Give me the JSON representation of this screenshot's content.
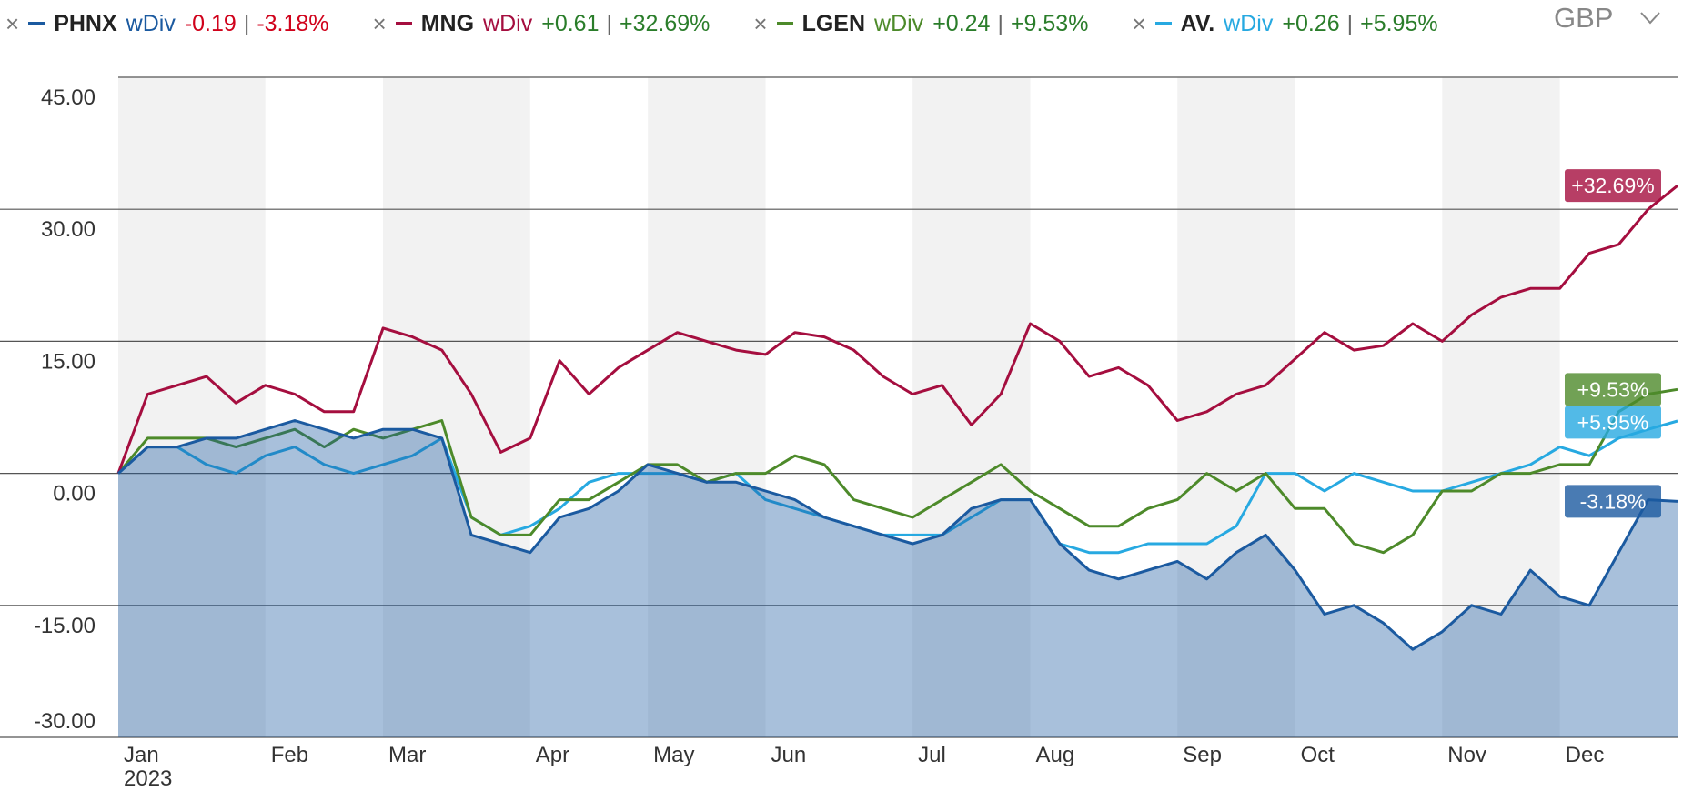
{
  "chart_data": {
    "type": "line",
    "currency": "GBP",
    "year_label": "2023",
    "categories": [
      "Jan",
      null,
      null,
      null,
      null,
      "Feb",
      null,
      null,
      null,
      "Mar",
      null,
      null,
      null,
      null,
      "Apr",
      null,
      null,
      null,
      "May",
      null,
      null,
      null,
      "Jun",
      null,
      null,
      null,
      null,
      "Jul",
      null,
      null,
      null,
      "Aug",
      null,
      null,
      null,
      null,
      "Sep",
      null,
      null,
      null,
      "Oct",
      null,
      null,
      null,
      null,
      "Nov",
      null,
      null,
      null,
      "Dec",
      null,
      null,
      null,
      null
    ],
    "ylim": [
      -30,
      45
    ],
    "yticks": [
      {
        "value": 45,
        "label": "45.00"
      },
      {
        "value": 30,
        "label": "30.00"
      },
      {
        "value": 15,
        "label": "15.00"
      },
      {
        "value": 0,
        "label": "0.00"
      },
      {
        "value": -15,
        "label": "-15.00"
      },
      {
        "value": -30,
        "label": "-30.00"
      }
    ],
    "grid": true,
    "series": [
      {
        "name": "PHNX",
        "div_label": "wDiv",
        "change": "-0.19",
        "change_pct": "-3.18%",
        "color": "#1b5aa0",
        "change_color": "#d0021b",
        "filled": true,
        "values": [
          0,
          3,
          3,
          4,
          4,
          5,
          6,
          5,
          4,
          5,
          5,
          4,
          -7,
          -8,
          -9,
          -5,
          -4,
          -2,
          1,
          0,
          -1,
          -1,
          -2,
          -3,
          -5,
          -6,
          -7,
          -8,
          -7,
          -4,
          -3,
          -3,
          -8,
          -11,
          -12,
          -11,
          -10,
          -12,
          -9,
          -7,
          -11,
          -16,
          -15,
          -17,
          -20,
          -18,
          -15,
          -16,
          -11,
          -14,
          -15,
          -9,
          -3,
          -3.18
        ]
      },
      {
        "name": "MNG",
        "div_label": "wDiv",
        "change": "+0.61",
        "change_pct": "+32.69%",
        "color": "#a50e3f",
        "change_color": "#2a7d2a",
        "filled": false,
        "values": [
          0,
          9,
          10,
          11,
          8,
          10,
          9,
          7,
          7,
          16.5,
          15.5,
          14,
          9,
          2.4,
          4,
          12.8,
          9,
          12,
          14,
          16,
          15,
          14,
          13.5,
          16,
          15.5,
          14,
          11,
          9,
          10,
          5.5,
          9,
          17,
          15,
          11,
          12,
          10,
          6,
          7,
          9,
          10,
          13,
          16,
          14,
          14.5,
          17,
          15,
          18,
          20,
          21,
          21,
          25,
          26,
          30,
          32.69
        ]
      },
      {
        "name": "LGEN",
        "div_label": "wDiv",
        "change": "+0.24",
        "change_pct": "+9.53%",
        "color": "#4d8a2a",
        "change_color": "#2a7d2a",
        "filled": false,
        "values": [
          0,
          4,
          4,
          4,
          3,
          4,
          5,
          3,
          5,
          4,
          5,
          6,
          -5,
          -7,
          -7,
          -3,
          -3,
          -1,
          1,
          1,
          -1,
          0,
          0,
          2,
          1,
          -3,
          -4,
          -5,
          -3,
          -1,
          1,
          -2,
          -4,
          -6,
          -6,
          -4,
          -3,
          0,
          -2,
          0,
          -4,
          -4,
          -8,
          -9,
          -7,
          -2,
          -2,
          0,
          0,
          1,
          1,
          7,
          9,
          9.53
        ]
      },
      {
        "name": "AV.",
        "div_label": "wDiv",
        "change": "+0.26",
        "change_pct": "+5.95%",
        "color": "#27a9e1",
        "change_color": "#2a7d2a",
        "filled": false,
        "values": [
          0,
          3,
          3,
          1,
          0,
          2,
          3,
          1,
          0,
          1,
          2,
          4,
          -5,
          -7,
          -6,
          -4,
          -1,
          0,
          0,
          0,
          -1,
          0,
          -3,
          -4,
          -5,
          -6,
          -7,
          -7,
          -7,
          -5,
          -3,
          -3,
          -8,
          -9,
          -9,
          -8,
          -8,
          -8,
          -6,
          0,
          0,
          -2,
          0,
          -1,
          -2,
          -2,
          -1,
          0,
          1,
          3,
          2,
          4,
          5,
          5.95
        ]
      }
    ]
  }
}
